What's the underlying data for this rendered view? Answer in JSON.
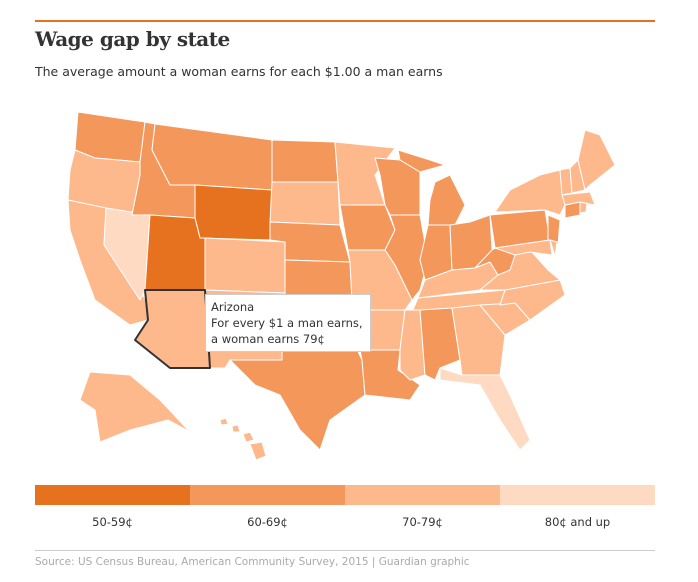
{
  "header": {
    "title": "Wage gap by state",
    "subtitle": "The average amount a woman earns for each $1.00 a man earns"
  },
  "legend": [
    {
      "label": "50-59¢",
      "color": "#e6711e"
    },
    {
      "label": "60-69¢",
      "color": "#f4975b"
    },
    {
      "label": "70-79¢",
      "color": "#fdb88c"
    },
    {
      "label": "80¢ and up",
      "color": "#fedac3"
    }
  ],
  "tooltip": {
    "state": "Arizona",
    "line1": "For every $1 a man earns,",
    "line2": "a woman earns 79¢"
  },
  "highlighted_state": "Arizona",
  "states": {
    "Washington": 1,
    "Oregon": 2,
    "California": 2,
    "Nevada": 3,
    "Idaho": 1,
    "Montana": 1,
    "Wyoming": 0,
    "Utah": 0,
    "Arizona": 2,
    "Colorado": 2,
    "New Mexico": 2,
    "North Dakota": 1,
    "South Dakota": 2,
    "Nebraska": 1,
    "Kansas": 1,
    "Oklahoma": 1,
    "Texas": 1,
    "Minnesota": 2,
    "Iowa": 1,
    "Missouri": 2,
    "Arkansas": 2,
    "Louisiana": 1,
    "Wisconsin": 1,
    "Illinois": 1,
    "Michigan": 1,
    "Indiana": 1,
    "Ohio": 1,
    "Kentucky": 2,
    "Tennessee": 2,
    "Mississippi": 2,
    "Alabama": 1,
    "Georgia": 2,
    "Florida": 3,
    "South Carolina": 2,
    "North Carolina": 2,
    "Virginia": 2,
    "West Virginia": 1,
    "Pennsylvania": 1,
    "New York": 2,
    "New Jersey": 1,
    "Maryland": 2,
    "Delaware": 2,
    "Connecticut": 1,
    "Rhode Island": 2,
    "Massachusetts": 2,
    "Vermont": 2,
    "New Hampshire": 2,
    "Maine": 2,
    "Alaska": 2,
    "Hawaii": 2
  },
  "source": "Source: US Census Bureau, American Community Survey, 2015 | Guardian graphic"
}
